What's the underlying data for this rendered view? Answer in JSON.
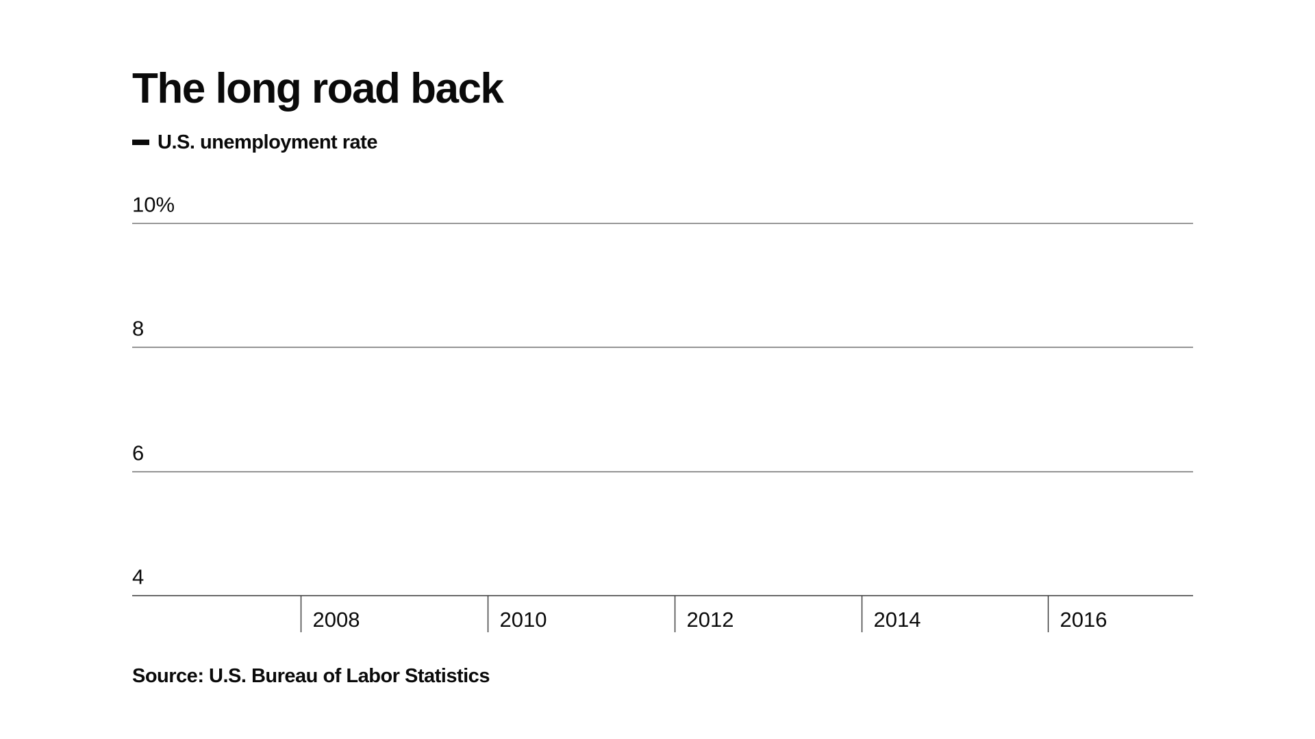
{
  "chart_data": {
    "type": "line",
    "title": "The long road back",
    "legend": {
      "position": "top-left",
      "entries": [
        {
          "name": "U.S. unemployment rate",
          "color": "#0a0a0a"
        }
      ]
    },
    "series": [
      {
        "name": "U.S. unemployment rate",
        "values": []
      }
    ],
    "x": [],
    "xlim": [
      2006.2,
      2017.55
    ],
    "ylim": [
      4,
      10
    ],
    "y_ticks": [
      {
        "value": 10,
        "label": "10%"
      },
      {
        "value": 8,
        "label": "8"
      },
      {
        "value": 6,
        "label": "6"
      },
      {
        "value": 4,
        "label": "4"
      }
    ],
    "x_ticks": [
      {
        "value": 2008,
        "label": "2008"
      },
      {
        "value": 2010,
        "label": "2010"
      },
      {
        "value": 2012,
        "label": "2012"
      },
      {
        "value": 2014,
        "label": "2014"
      },
      {
        "value": 2016,
        "label": "2016"
      }
    ],
    "grid": true,
    "xlabel": "",
    "ylabel": "",
    "source": "Source: U.S. Bureau of Labor Statistics"
  },
  "colors": {
    "text": "#0a0a0a",
    "gridline": "#707070",
    "axis": "#333333",
    "background": "#ffffff"
  }
}
